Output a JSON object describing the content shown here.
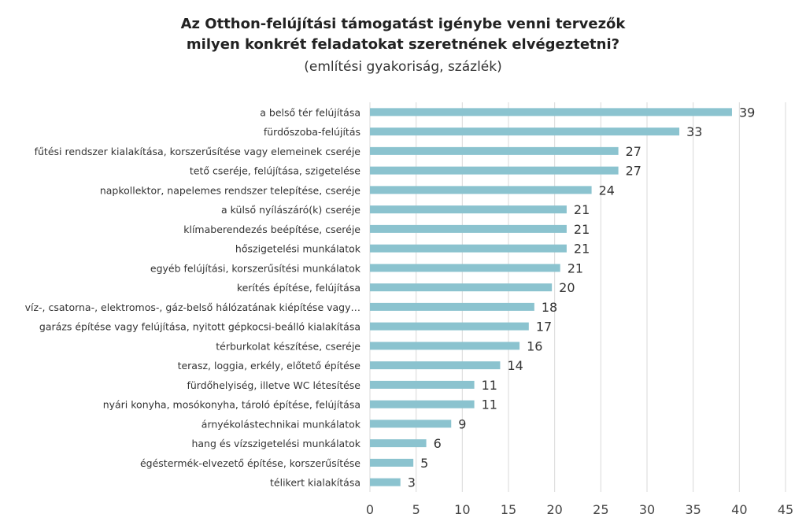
{
  "chart_data": {
    "type": "bar",
    "orientation": "horizontal",
    "title_line1": "Az Otthon-felújítási támogatást igénybe venni tervezők",
    "title_line2": "milyen konkrét feladatokat szeretnének elvégeztetni?",
    "subtitle": "(említési gyakoriság, százlék)",
    "categories": [
      "a belső tér felújítása",
      "fürdőszoba-felújítás",
      "fűtési rendszer kialakítása, korszerűsítése vagy elemeinek cseréje",
      "tető cseréje, felújítása, szigetelése",
      "napkollektor, napelemes rendszer telepítése, cseréje",
      "a külső nyílászáró(k) cseréje",
      "klímaberendezés beépítése, cseréje",
      "hőszigetelési munkálatok",
      "egyéb felújítási, korszerűsítési munkálatok",
      "kerítés építése, felújítása",
      "víz-, csatorna-, elektromos-, gáz-belső hálózatának kiépítése vagy…",
      "garázs építése vagy felújítása, nyitott gépkocsi-beálló kialakítása",
      "térburkolat készítése, cseréje",
      "terasz, loggia, erkély, előtető építése",
      "fürdőhelyiség, illetve WC létesítése",
      "nyári konyha, mosókonyha, tároló építése, felújítása",
      "árnyékolástechnikai munkálatok",
      "hang és vízszigetelési munkálatok",
      "égéstermék-elvezető építése, korszerűsítése",
      "télikert kialakítása"
    ],
    "values": [
      39,
      33,
      27,
      27,
      24,
      21,
      21,
      21,
      21,
      20,
      18,
      17,
      16,
      14,
      11,
      11,
      9,
      6,
      5,
      3
    ],
    "bar_lengths": [
      39.2,
      33.5,
      26.9,
      26.9,
      24.0,
      21.3,
      21.3,
      21.3,
      20.6,
      19.7,
      17.8,
      17.2,
      16.2,
      14.1,
      11.3,
      11.3,
      8.8,
      6.1,
      4.7,
      3.3
    ],
    "xticks": [
      0,
      5,
      10,
      15,
      20,
      25,
      30,
      35,
      40,
      45
    ],
    "xlim": [
      0,
      45
    ],
    "grid": true,
    "legend": "none",
    "bar_color": "#8bc3cf",
    "grid_color": "#d9d9d9"
  }
}
